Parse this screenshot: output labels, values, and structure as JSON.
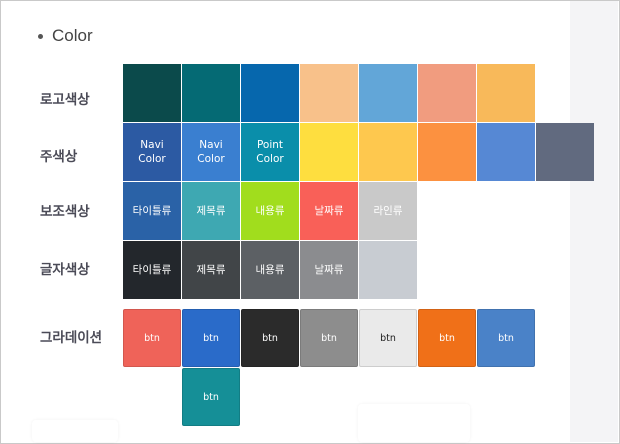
{
  "section": {
    "title": "Color"
  },
  "rows": {
    "logo": {
      "label": "로고색상"
    },
    "main": {
      "label": "주색상"
    },
    "sub": {
      "label": "보조색상"
    },
    "text": {
      "label": "글자색상"
    },
    "gradation": {
      "label": "그라데이션"
    }
  },
  "logo_colors": [
    "#0b4a4b",
    "#056a74",
    "#0667ad",
    "#f8c18a",
    "#62a6d8",
    "#f19c7f",
    "#f8b95a"
  ],
  "main_colors": {
    "colors": [
      "#2c5aa3",
      "#3a7fd0",
      "#0a8eaa",
      "#fede3f",
      "#fec84e",
      "#fc9140",
      "#5688d4",
      "#616a7f"
    ],
    "labels": [
      "Navi\nColor",
      "Navi\nColor",
      "Point\nColor"
    ]
  },
  "sub_colors": {
    "colors": [
      "#2a62a7",
      "#3ea8b2",
      "#a1dd1d",
      "#f96058",
      "#c9c9c9"
    ],
    "labels": [
      "타이틀류",
      "제목류",
      "내용류",
      "날짜류",
      "라인류"
    ]
  },
  "text_colors": {
    "colors": [
      "#23272c",
      "#414548",
      "#5c6064",
      "#8b8c8f",
      "#c8ccd2"
    ],
    "labels": [
      "타이틀류",
      "제목류",
      "내용류",
      "날짜류"
    ]
  },
  "gradation_buttons": {
    "colors": [
      "#ef6359",
      "#2a6bc9",
      "#2b2b2b",
      "#8d8d8d",
      "#eaeaea",
      "#f07018",
      "#4a82c8",
      "#158f97"
    ],
    "text_colors": [
      "#ffffff",
      "#ffffff",
      "#ffffff",
      "#ffffff",
      "#222222",
      "#ffffff",
      "#ffffff",
      "#ffffff"
    ],
    "label": "btn"
  }
}
